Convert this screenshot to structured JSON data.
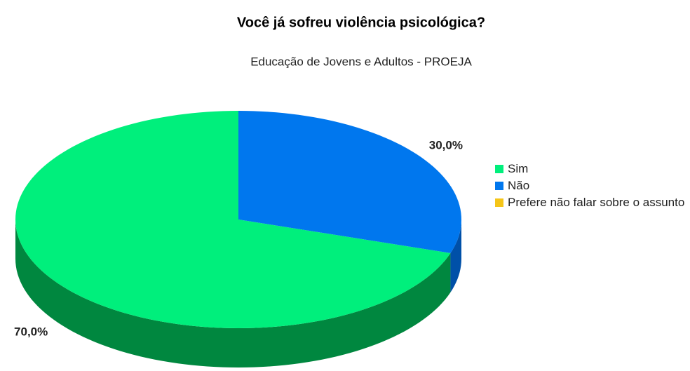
{
  "chart_data": {
    "type": "pie",
    "title": "Você já sofreu violência psicológica?",
    "subtitle": "Educação de Jovens e Adultos - PROEJA",
    "categories": [
      "Sim",
      "Não",
      "Prefere não falar sobre o assunto"
    ],
    "values": [
      70,
      30,
      0
    ],
    "value_labels": [
      "70,0%",
      "30,0%",
      null
    ],
    "colors": [
      "#00ef7c",
      "#0077ee",
      "#f5c518"
    ],
    "side_colors": [
      "#00873f",
      "#0050a8",
      "#a8860c"
    ],
    "legend": "right",
    "three_d": true
  }
}
